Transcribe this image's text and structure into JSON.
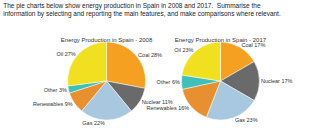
{
  "title": "The pie charts below show energy production in Spain in 2008 and 2017.  Summarise the\ninformation by selecting and reporting the main features, and make comparisons where relevant.",
  "chart_data": [
    {
      "type": "pie",
      "title": "Energy Production in Spain - 2008",
      "categories": [
        "Coal 28%",
        "Nuclear 11%",
        "Gas 22%",
        "Renewables 9%",
        "Other 3%",
        "Oil 27%"
      ],
      "values": [
        28,
        11,
        22,
        9,
        3,
        27
      ],
      "colors": [
        "#F5A020",
        "#6A6A6A",
        "#A8C8E0",
        "#E89030",
        "#40C0B8",
        "#F0E020"
      ]
    },
    {
      "type": "pie",
      "title": "Energy Production in Spain - 2017",
      "categories": [
        "Coal 17%",
        "Nuclear 17%",
        "Gas 23%",
        "Renewables 16%",
        "Other 6%",
        "Oil 23%"
      ],
      "values": [
        17,
        17,
        23,
        16,
        6,
        23
      ],
      "colors": [
        "#F5A020",
        "#6A6A6A",
        "#A8C8E0",
        "#E89030",
        "#40C0B8",
        "#F0E020"
      ]
    }
  ]
}
